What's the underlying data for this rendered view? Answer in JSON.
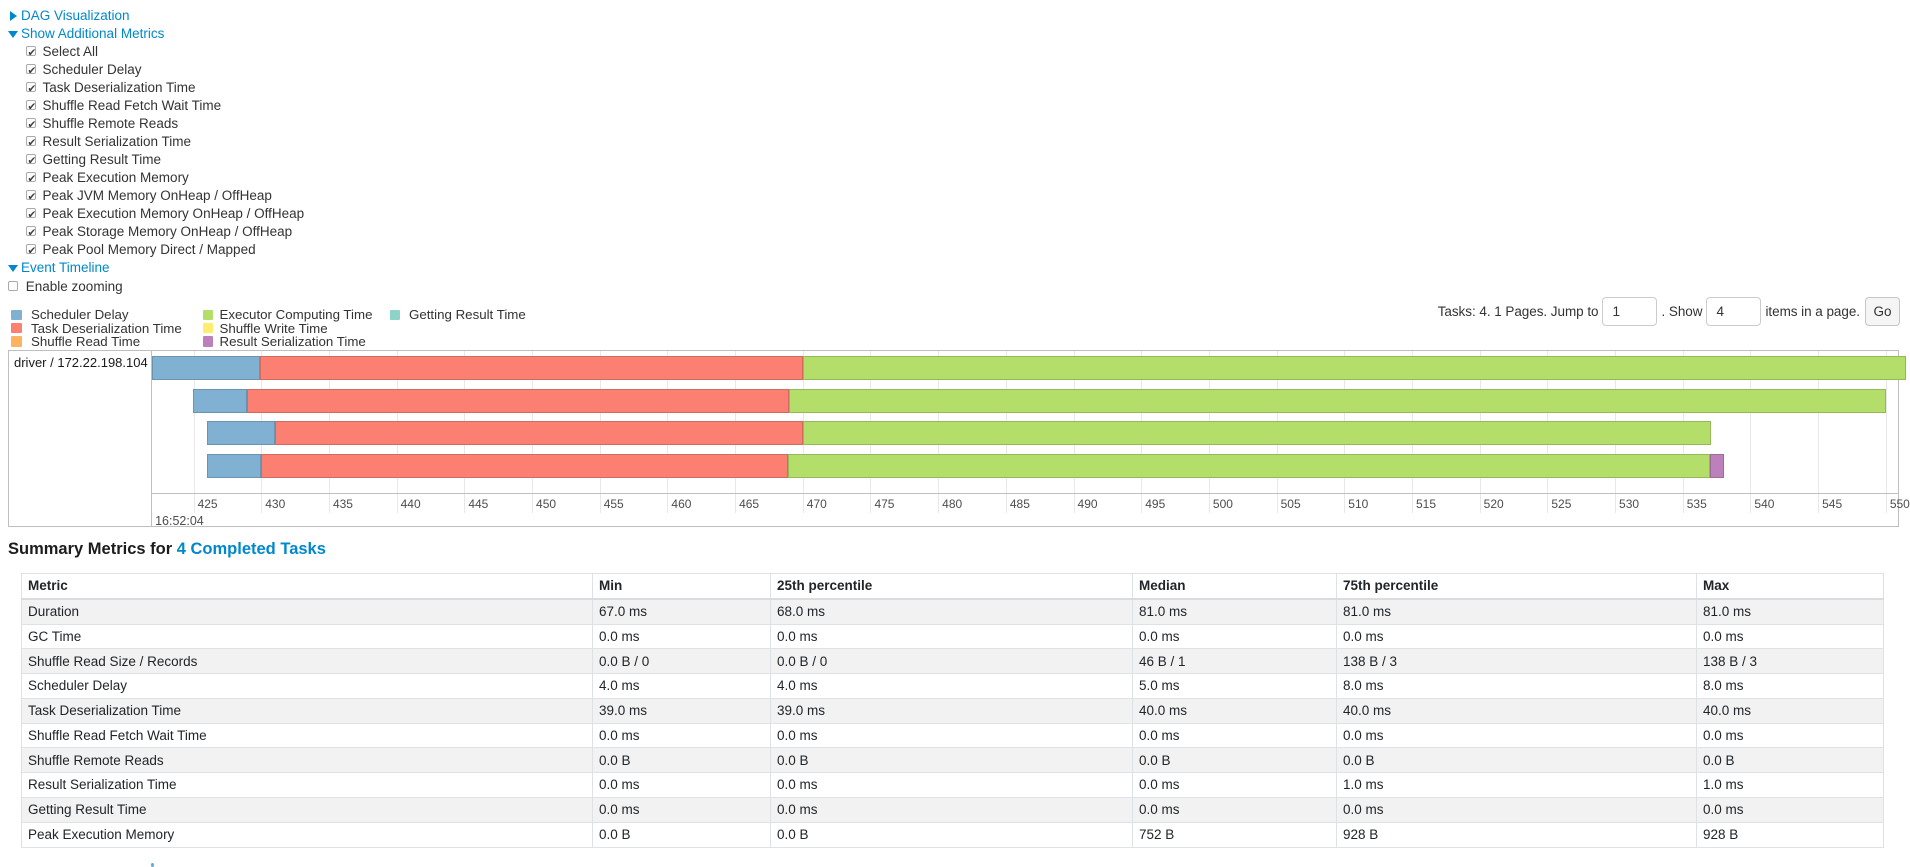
{
  "controls": {
    "dag_visualization": {
      "label": "DAG Visualization",
      "state": "collapsed"
    },
    "show_additional_metrics": {
      "label": "Show Additional Metrics",
      "state": "expanded"
    },
    "metric_checkboxes": [
      {
        "label": "Select All",
        "checked": true
      },
      {
        "label": "Scheduler Delay",
        "checked": true
      },
      {
        "label": "Task Deserialization Time",
        "checked": true
      },
      {
        "label": "Shuffle Read Fetch Wait Time",
        "checked": true
      },
      {
        "label": "Shuffle Remote Reads",
        "checked": true
      },
      {
        "label": "Result Serialization Time",
        "checked": true
      },
      {
        "label": "Getting Result Time",
        "checked": true
      },
      {
        "label": "Peak Execution Memory",
        "checked": true
      },
      {
        "label": "Peak JVM Memory OnHeap / OffHeap",
        "checked": true
      },
      {
        "label": "Peak Execution Memory OnHeap / OffHeap",
        "checked": true
      },
      {
        "label": "Peak Storage Memory OnHeap / OffHeap",
        "checked": true
      },
      {
        "label": "Peak Pool Memory Direct / Mapped",
        "checked": true
      }
    ],
    "event_timeline": {
      "label": "Event Timeline",
      "state": "expanded"
    },
    "enable_zooming": {
      "label": "Enable zooming",
      "checked": false
    }
  },
  "pagination": {
    "prefix": "Tasks: 4. 1 Pages. Jump to",
    "jump_value": "1",
    "mid": ". Show",
    "show_value": "4",
    "suffix": "items in a page.",
    "go_label": "Go"
  },
  "legend": {
    "columns": [
      [
        {
          "label": "Scheduler Delay",
          "color": "#80B1D3"
        },
        {
          "label": "Task Deserialization Time",
          "color": "#FB8072"
        },
        {
          "label": "Shuffle Read Time",
          "color": "#FDB462"
        }
      ],
      [
        {
          "label": "Executor Computing Time",
          "color": "#B3DE69"
        },
        {
          "label": "Shuffle Write Time",
          "color": "#FFED6F"
        },
        {
          "label": "Result Serialization Time",
          "color": "#BC80BD"
        }
      ],
      [
        {
          "label": "Getting Result Time",
          "color": "#8DD3C7"
        }
      ]
    ]
  },
  "chart_data": {
    "type": "timeline",
    "title": "Event Timeline",
    "group_label": "driver / 172.22.198.104",
    "axis": {
      "window_start_ms": 421.9,
      "window_end_ms": 550.9,
      "tick_start_ms": 425,
      "tick_end_ms": 550,
      "tick_interval_ms": 5,
      "major_label": "16:52:04",
      "unit": "ms within 16:52:04"
    },
    "segment_colors": {
      "scheduler-delay": {
        "fill": "#80B1D3",
        "border": "#6B94B0"
      },
      "task-deserialization": {
        "fill": "#FB8072",
        "border": "#D26B5F"
      },
      "shuffle-read": {
        "fill": "#FDB462",
        "border": "#D39651"
      },
      "executor-computing": {
        "fill": "#B3DE69",
        "border": "#95B957"
      },
      "shuffle-write": {
        "fill": "#FFED6F",
        "border": "#D5C65C"
      },
      "result-serialization": {
        "fill": "#BC80BD",
        "border": "#9D6B9E"
      },
      "getting-result": {
        "fill": "#8DD3C7",
        "border": "#75B0A6"
      }
    },
    "tasks": [
      {
        "segments": [
          {
            "type": "scheduler-delay",
            "start": 421.9,
            "end": 429.9
          },
          {
            "type": "task-deserialization",
            "start": 429.9,
            "end": 470.0
          },
          {
            "type": "executor-computing",
            "start": 470.0,
            "end": 551.5
          }
        ]
      },
      {
        "segments": [
          {
            "type": "scheduler-delay",
            "start": 424.96,
            "end": 428.93
          },
          {
            "type": "task-deserialization",
            "start": 428.93,
            "end": 468.97
          },
          {
            "type": "executor-computing",
            "start": 468.97,
            "end": 550.0
          }
        ]
      },
      {
        "segments": [
          {
            "type": "scheduler-delay",
            "start": 426.0,
            "end": 431.0
          },
          {
            "type": "task-deserialization",
            "start": 431.0,
            "end": 470.0
          },
          {
            "type": "executor-computing",
            "start": 470.0,
            "end": 537.1
          }
        ]
      },
      {
        "segments": [
          {
            "type": "scheduler-delay",
            "start": 426.0,
            "end": 430.0
          },
          {
            "type": "task-deserialization",
            "start": 430.0,
            "end": 468.9
          },
          {
            "type": "executor-computing",
            "start": 468.9,
            "end": 537.0
          },
          {
            "type": "result-serialization",
            "start": 537.0,
            "end": 538.05
          }
        ]
      }
    ]
  },
  "summary": {
    "heading_prefix": "Summary Metrics for ",
    "heading_link": "4 Completed Tasks",
    "table": {
      "headers": [
        "Metric",
        "Min",
        "25th percentile",
        "Median",
        "75th percentile",
        "Max"
      ],
      "rows": [
        {
          "metric": "Duration",
          "values": [
            "67.0 ms",
            "68.0 ms",
            "81.0 ms",
            "81.0 ms",
            "81.0 ms"
          ]
        },
        {
          "metric": "GC Time",
          "values": [
            "0.0 ms",
            "0.0 ms",
            "0.0 ms",
            "0.0 ms",
            "0.0 ms"
          ]
        },
        {
          "metric": "Shuffle Read Size / Records",
          "values": [
            "0.0 B / 0",
            "0.0 B / 0",
            "46 B / 1",
            "138 B / 3",
            "138 B / 3"
          ]
        },
        {
          "metric": "Scheduler Delay",
          "values": [
            "4.0 ms",
            "4.0 ms",
            "5.0 ms",
            "8.0 ms",
            "8.0 ms"
          ]
        },
        {
          "metric": "Task Deserialization Time",
          "values": [
            "39.0 ms",
            "39.0 ms",
            "40.0 ms",
            "40.0 ms",
            "40.0 ms"
          ]
        },
        {
          "metric": "Shuffle Read Fetch Wait Time",
          "values": [
            "0.0 ms",
            "0.0 ms",
            "0.0 ms",
            "0.0 ms",
            "0.0 ms"
          ]
        },
        {
          "metric": "Shuffle Remote Reads",
          "values": [
            "0.0 B",
            "0.0 B",
            "0.0 B",
            "0.0 B",
            "0.0 B"
          ]
        },
        {
          "metric": "Result Serialization Time",
          "values": [
            "0.0 ms",
            "0.0 ms",
            "0.0 ms",
            "1.0 ms",
            "1.0 ms"
          ]
        },
        {
          "metric": "Getting Result Time",
          "values": [
            "0.0 ms",
            "0.0 ms",
            "0.0 ms",
            "0.0 ms",
            "0.0 ms"
          ]
        },
        {
          "metric": "Peak Execution Memory",
          "values": [
            "0.0 B",
            "0.0 B",
            "752 B",
            "928 B",
            "928 B"
          ]
        }
      ]
    }
  }
}
